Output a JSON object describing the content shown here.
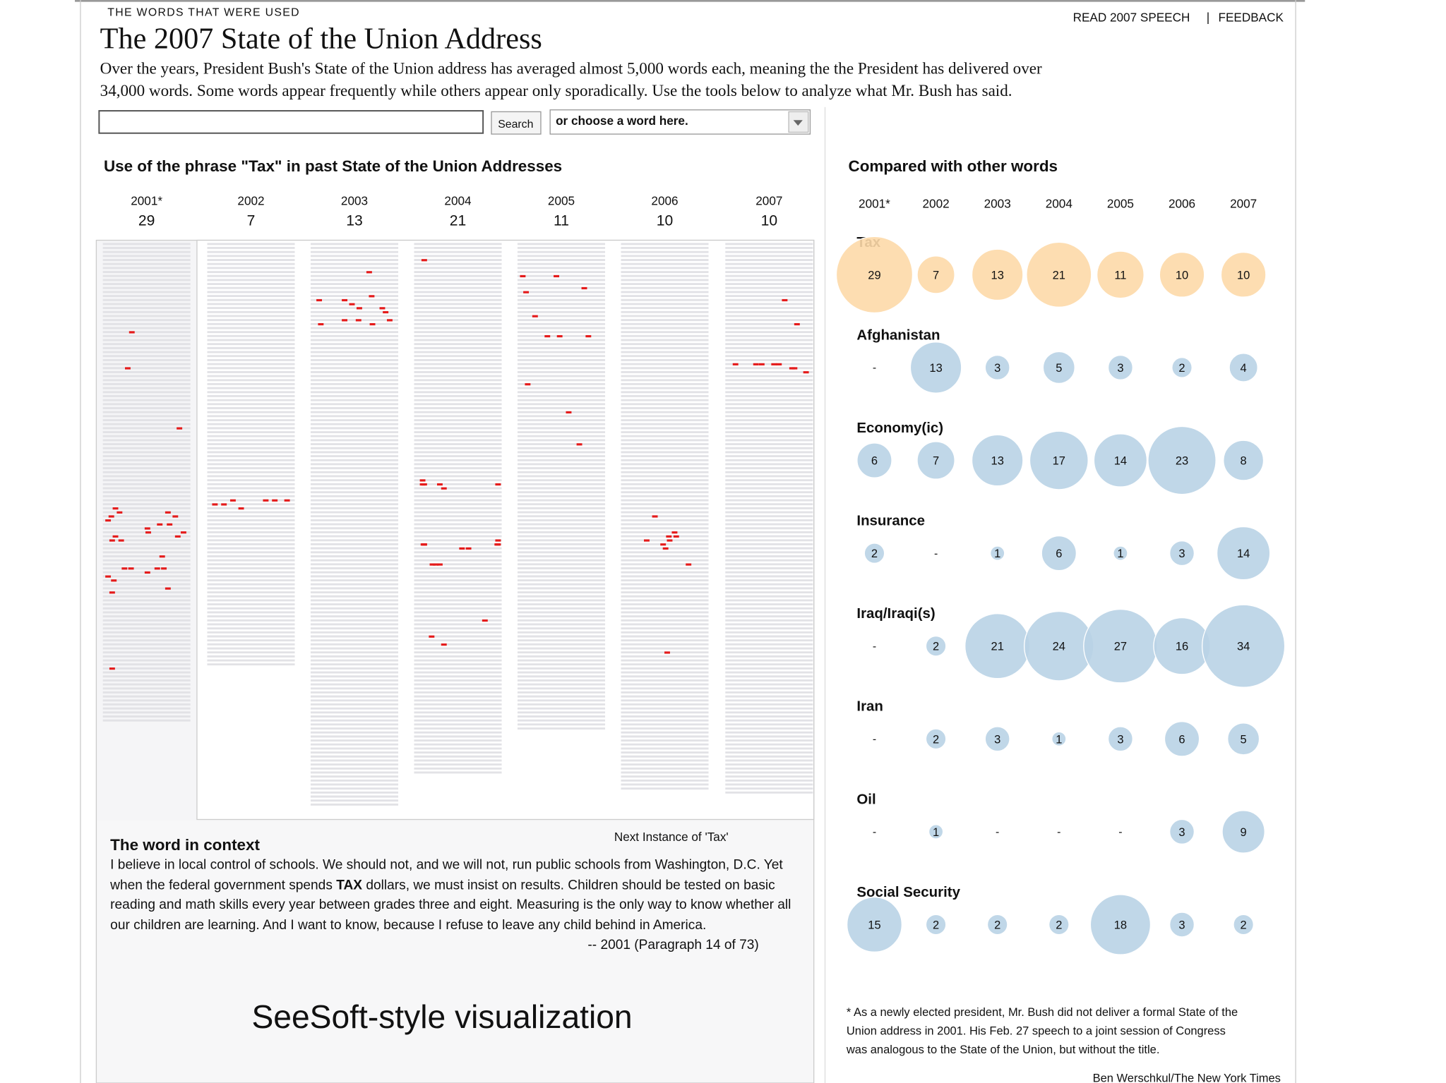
{
  "header": {
    "kicker": "THE WORDS THAT WERE USED",
    "title": "The 2007 State of the Union Address",
    "intro": [
      "Over the years, President Bush's State of the Union address has averaged almost 5,000 words each, meaning the the President has delivered over",
      "34,000 words. Some words appear frequently while others appear only sporadically. Use the tools below to analyze what Mr. Bush has said."
    ],
    "links": [
      "READ 2007 SPEECH",
      "FEEDBACK"
    ],
    "link_separator": "|"
  },
  "search": {
    "button": "Search",
    "dropdown": "or choose a word here."
  },
  "years": [
    "2001*",
    "2002",
    "2003",
    "2004",
    "2005",
    "2006",
    "2007"
  ],
  "seesoft": {
    "title": "Use of the phrase \"Tax\" in past State of the Union Addresses",
    "columns": [
      {
        "count": 29,
        "lines": 120,
        "hits": [
          [
            22,
            0.32
          ],
          [
            31,
            0.27
          ],
          [
            46,
            0.9
          ],
          [
            66,
            0.12
          ],
          [
            67,
            0.17
          ],
          [
            68,
            0.07
          ],
          [
            69,
            0.03
          ],
          [
            71,
            0.51
          ],
          [
            70,
            0.66
          ],
          [
            67,
            0.76
          ],
          [
            68,
            0.85
          ],
          [
            72,
            0.95
          ],
          [
            73,
            0.12
          ],
          [
            74,
            0.19
          ],
          [
            73,
            0.88
          ],
          [
            70,
            0.78
          ],
          [
            72,
            0.52
          ],
          [
            74,
            0.08
          ],
          [
            78,
            0.69
          ],
          [
            81,
            0.23
          ],
          [
            81,
            0.31
          ],
          [
            82,
            0.51
          ],
          [
            81,
            0.63
          ],
          [
            81,
            0.71
          ],
          [
            83,
            0.03
          ],
          [
            84,
            0.1
          ],
          [
            86,
            0.76
          ],
          [
            87,
            0.08
          ],
          [
            106,
            0.08
          ]
        ]
      },
      {
        "count": 7,
        "lines": 106,
        "hits": [
          [
            65,
            0.06
          ],
          [
            65,
            0.17
          ],
          [
            64,
            0.28
          ],
          [
            66,
            0.38
          ],
          [
            64,
            0.68
          ],
          [
            64,
            0.79
          ],
          [
            64,
            0.94
          ]
        ]
      },
      {
        "count": 13,
        "lines": 141,
        "hits": [
          [
            7,
            0.68
          ],
          [
            14,
            0.07
          ],
          [
            14,
            0.38
          ],
          [
            15,
            0.47
          ],
          [
            13,
            0.71
          ],
          [
            16,
            0.84
          ],
          [
            16,
            0.56
          ],
          [
            17,
            0.88
          ],
          [
            19,
            0.93
          ],
          [
            19,
            0.38
          ],
          [
            19,
            0.55
          ],
          [
            20,
            0.72
          ],
          [
            20,
            0.09
          ]
        ]
      },
      {
        "count": 21,
        "lines": 133,
        "hits": [
          [
            4,
            0.09
          ],
          [
            59,
            0.07
          ],
          [
            60,
            0.07
          ],
          [
            60,
            0.28
          ],
          [
            61,
            0.33
          ],
          [
            60,
            0.99
          ],
          [
            75,
            0.09
          ],
          [
            75,
            0.09
          ],
          [
            74,
            0.99
          ],
          [
            75,
            0.99
          ],
          [
            76,
            0.55
          ],
          [
            76,
            0.63
          ],
          [
            80,
            0.19
          ],
          [
            80,
            0.28
          ],
          [
            94,
            0.83
          ],
          [
            98,
            0.18
          ],
          [
            100,
            0.33
          ],
          [
            60,
            0.09
          ],
          [
            75,
            0.08
          ],
          [
            75,
            0.98
          ],
          [
            80,
            0.23
          ]
        ]
      },
      {
        "count": 11,
        "lines": 122,
        "hits": [
          [
            8,
            0.03
          ],
          [
            8,
            0.44
          ],
          [
            11,
            0.78
          ],
          [
            12,
            0.07
          ],
          [
            18,
            0.18
          ],
          [
            23,
            0.33
          ],
          [
            23,
            0.48
          ],
          [
            23,
            0.83
          ],
          [
            35,
            0.09
          ],
          [
            42,
            0.59
          ],
          [
            50,
            0.72
          ]
        ]
      },
      {
        "count": 10,
        "lines": 137,
        "hits": [
          [
            68,
            0.38
          ],
          [
            73,
            0.55
          ],
          [
            73,
            0.64
          ],
          [
            74,
            0.28
          ],
          [
            74,
            0.56
          ],
          [
            75,
            0.48
          ],
          [
            76,
            0.51
          ],
          [
            72,
            0.62
          ],
          [
            80,
            0.79
          ],
          [
            102,
            0.53
          ]
        ]
      },
      {
        "count": 10,
        "lines": 138,
        "hits": [
          [
            14,
            0.69
          ],
          [
            20,
            0.84
          ],
          [
            30,
            0.09
          ],
          [
            30,
            0.34
          ],
          [
            30,
            0.41
          ],
          [
            30,
            0.56
          ],
          [
            30,
            0.62
          ],
          [
            31,
            0.78
          ],
          [
            31,
            0.81
          ],
          [
            32,
            0.95
          ]
        ]
      }
    ]
  },
  "context": {
    "title": "The word in context",
    "next": "Next Instance of 'Tax'",
    "lines": [
      "I believe in local control of schools. We should not, and we will not, run public schools from Washington, D.C. Yet",
      [
        "when the federal government spends ",
        "TAX",
        " dollars, we must insist on results. Children should be tested on basic"
      ],
      "reading and math skills every year between grades three and eight. Measuring is the only way to know whether all",
      "our children are learning. And I want to know, because I refuse to leave any child behind in America."
    ],
    "source": "-- 2001 (Paragraph 14 of 73)"
  },
  "caption": "SeeSoft-style visualization",
  "compare": {
    "title": "Compared with other words",
    "missing_label": "-",
    "rows": [
      {
        "word": "Tax",
        "color": "#fdd9a9",
        "values": [
          29,
          7,
          13,
          21,
          11,
          10,
          10
        ]
      },
      {
        "word": "Afghanistan",
        "color": "#b9d3e6",
        "values": [
          null,
          13,
          3,
          5,
          3,
          2,
          4
        ]
      },
      {
        "word": "Economy(ic)",
        "color": "#b9d3e6",
        "values": [
          6,
          7,
          13,
          17,
          14,
          23,
          8
        ]
      },
      {
        "word": "Insurance",
        "color": "#b9d3e6",
        "values": [
          2,
          null,
          1,
          6,
          1,
          3,
          14
        ]
      },
      {
        "word": "Iraq/Iraqi(s)",
        "color": "#b9d3e6",
        "values": [
          null,
          2,
          21,
          24,
          27,
          16,
          34
        ]
      },
      {
        "word": "Iran",
        "color": "#b9d3e6",
        "values": [
          null,
          2,
          3,
          1,
          3,
          6,
          5
        ]
      },
      {
        "word": "Oil",
        "color": "#b9d3e6",
        "values": [
          null,
          1,
          null,
          null,
          null,
          3,
          9
        ]
      },
      {
        "word": "Social Security",
        "color": "#b9d3e6",
        "values": [
          15,
          2,
          2,
          2,
          18,
          3,
          2
        ]
      }
    ]
  },
  "footnote": [
    "* As a newly elected president, Mr. Bush did not deliver a formal State of the",
    "Union address in 2001. His Feb. 27 speech to a joint session of Congress",
    "was analogous to the State of the Union, but without the title."
  ],
  "credit": "Ben Werschkul/The New York Times"
}
